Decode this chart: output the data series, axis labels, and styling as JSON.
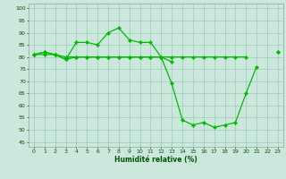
{
  "x": [
    0,
    1,
    2,
    3,
    4,
    5,
    6,
    7,
    8,
    9,
    10,
    11,
    12,
    13,
    14,
    15,
    16,
    17,
    18,
    19,
    20,
    21,
    22,
    23
  ],
  "line_peak": [
    81,
    82,
    81,
    79,
    86,
    86,
    85,
    90,
    92,
    87,
    86,
    86,
    80,
    78,
    null,
    null,
    null,
    null,
    null,
    null,
    null,
    null,
    null,
    82
  ],
  "line_drop": [
    81,
    82,
    81,
    79,
    80,
    80,
    80,
    80,
    80,
    80,
    80,
    80,
    80,
    69,
    54,
    52,
    53,
    51,
    52,
    53,
    65,
    76,
    null,
    82
  ],
  "line_flat": [
    81,
    81,
    81,
    80,
    80,
    80,
    80,
    80,
    80,
    80,
    80,
    80,
    80,
    80,
    80,
    80,
    80,
    80,
    80,
    80,
    80,
    null,
    null,
    null
  ],
  "xlabel": "Humidité relative (%)",
  "yticks": [
    45,
    50,
    55,
    60,
    65,
    70,
    75,
    80,
    85,
    90,
    95,
    100
  ],
  "xticks": [
    0,
    1,
    2,
    3,
    4,
    5,
    6,
    7,
    8,
    9,
    10,
    11,
    12,
    13,
    14,
    15,
    16,
    17,
    18,
    19,
    20,
    21,
    22,
    23
  ],
  "ylim": [
    43,
    102
  ],
  "xlim": [
    -0.5,
    23.5
  ],
  "line_color": "#00bb00",
  "bg_color": "#cce8dc",
  "grid_color": "#99ccbb",
  "figsize": [
    3.2,
    2.0
  ],
  "dpi": 100
}
